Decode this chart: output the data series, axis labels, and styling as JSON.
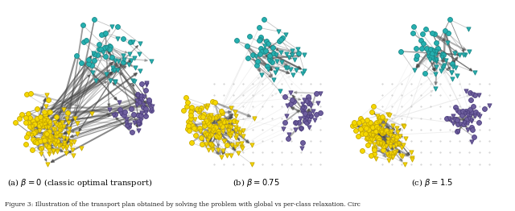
{
  "figure_width": 6.4,
  "figure_height": 2.62,
  "dpi": 100,
  "background_color": "#ffffff",
  "subfig_captions": [
    "(a) $\\beta = 0$ (classic optimal transport)",
    "(b) $\\beta = 0.75$",
    "(c) $\\beta = 1.5$"
  ],
  "figure_caption": "Figure 3: Illustration of the transport plan obtained by solving the problem with global vs per-class relaxation. Circ",
  "colors": {
    "teal": "#26b0b0",
    "teal_edge": "#1a8888",
    "purple": "#6e5f9e",
    "purple_edge": "#4e3f7e",
    "yellow": "#f5d800",
    "yellow_edge": "#c8a800",
    "arrow_dark": "#484848",
    "arrow_med": "#888888",
    "arrow_light": "#bbbbbb"
  },
  "betas": [
    0,
    0.75,
    1.5
  ],
  "random_seed": 7
}
